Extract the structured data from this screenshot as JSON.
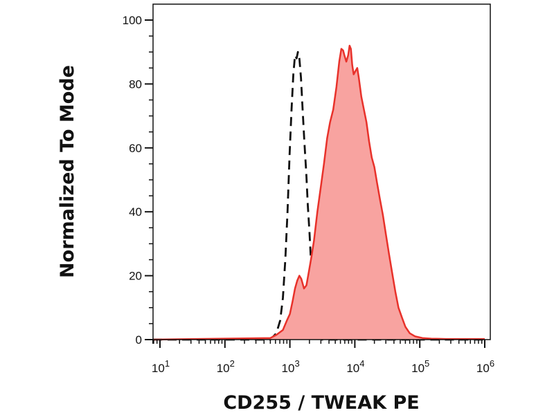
{
  "chart_data": {
    "type": "area",
    "xlabel": "CD255 / TWEAK PE",
    "ylabel": "Normalized To Mode",
    "x_scale": "log",
    "xlim": [
      10,
      1000000
    ],
    "ylim": [
      0,
      105
    ],
    "y_ticks": [
      0,
      20,
      40,
      60,
      80,
      100
    ],
    "y_tick_labels": [
      "0",
      "20",
      "40",
      "60",
      "80",
      "100"
    ],
    "x_ticks": [
      10,
      100,
      1000,
      10000,
      100000,
      1000000
    ],
    "x_tick_labels": [
      {
        "base": "10",
        "exp": "1"
      },
      {
        "base": "10",
        "exp": "2"
      },
      {
        "base": "10",
        "exp": "3"
      },
      {
        "base": "10",
        "exp": "4"
      },
      {
        "base": "10",
        "exp": "5"
      },
      {
        "base": "10",
        "exp": "6"
      }
    ],
    "grid": false,
    "series": [
      {
        "style": "dashed outline",
        "color": "#111111",
        "points": [
          [
            5,
            0
          ],
          [
            500,
            0
          ],
          [
            620,
            2
          ],
          [
            710,
            6
          ],
          [
            780,
            13
          ],
          [
            850,
            25
          ],
          [
            920,
            40
          ],
          [
            990,
            58
          ],
          [
            1060,
            72
          ],
          [
            1130,
            83
          ],
          [
            1200,
            89
          ],
          [
            1270,
            88
          ],
          [
            1330,
            90
          ],
          [
            1400,
            88
          ],
          [
            1480,
            82
          ],
          [
            1570,
            72
          ],
          [
            1670,
            62
          ],
          [
            1790,
            52
          ],
          [
            1890,
            42
          ],
          [
            2000,
            34
          ],
          [
            2120,
            24
          ],
          [
            2250,
            14
          ],
          [
            2400,
            7
          ],
          [
            2580,
            3
          ],
          [
            2800,
            1
          ],
          [
            3100,
            0
          ],
          [
            1000000,
            0
          ]
        ]
      },
      {
        "style": "filled",
        "color": "#e8312a",
        "fill": "#f8a3a0",
        "points": [
          [
            5,
            0
          ],
          [
            500,
            0.5
          ],
          [
            620,
            1.5
          ],
          [
            780,
            3
          ],
          [
            900,
            6
          ],
          [
            1000,
            8
          ],
          [
            1100,
            12
          ],
          [
            1200,
            16
          ],
          [
            1300,
            18.5
          ],
          [
            1400,
            20
          ],
          [
            1500,
            19
          ],
          [
            1650,
            16
          ],
          [
            1800,
            17
          ],
          [
            1950,
            21
          ],
          [
            2150,
            26
          ],
          [
            2350,
            31
          ],
          [
            2650,
            40
          ],
          [
            3000,
            48
          ],
          [
            3350,
            55
          ],
          [
            3750,
            63
          ],
          [
            4150,
            68
          ],
          [
            4650,
            72
          ],
          [
            5200,
            79
          ],
          [
            5750,
            87
          ],
          [
            6200,
            91
          ],
          [
            6600,
            90.5
          ],
          [
            6900,
            89
          ],
          [
            7400,
            87
          ],
          [
            7900,
            89
          ],
          [
            8300,
            92
          ],
          [
            8700,
            91
          ],
          [
            9100,
            86
          ],
          [
            9600,
            83
          ],
          [
            10200,
            84
          ],
          [
            10900,
            85
          ],
          [
            11500,
            82
          ],
          [
            12600,
            76
          ],
          [
            13800,
            72
          ],
          [
            15100,
            68
          ],
          [
            16600,
            62
          ],
          [
            18200,
            57
          ],
          [
            20000,
            54
          ],
          [
            22000,
            49
          ],
          [
            24300,
            44
          ],
          [
            27000,
            39
          ],
          [
            30000,
            33
          ],
          [
            33500,
            27
          ],
          [
            37500,
            21
          ],
          [
            42000,
            15
          ],
          [
            47000,
            10
          ],
          [
            53000,
            7
          ],
          [
            60000,
            4
          ],
          [
            70000,
            2
          ],
          [
            85000,
            1
          ],
          [
            110000,
            0.5
          ],
          [
            150000,
            0.3
          ],
          [
            250000,
            0.2
          ],
          [
            1000000,
            0.2
          ]
        ]
      }
    ]
  }
}
